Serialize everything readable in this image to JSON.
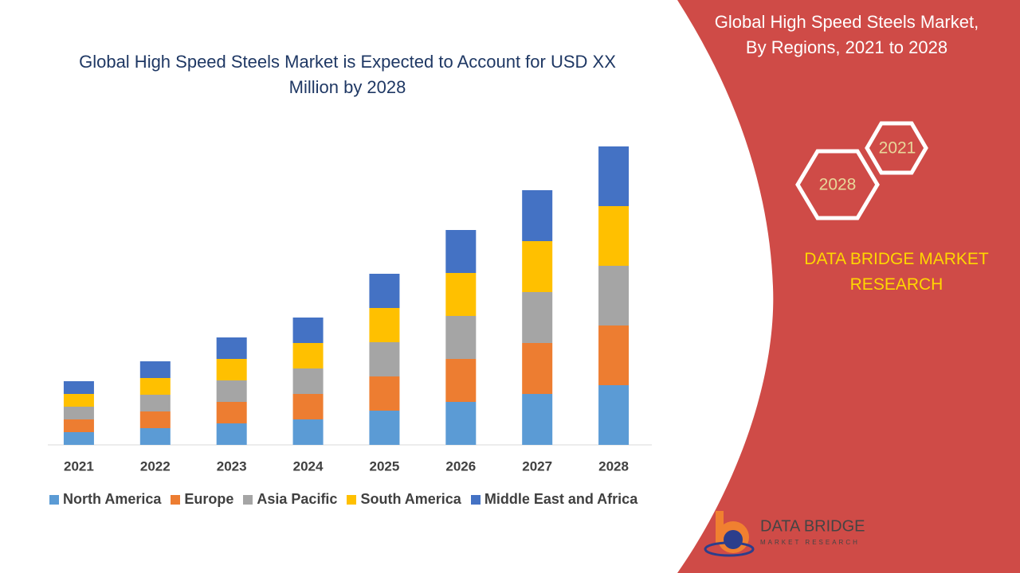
{
  "chart_data": {
    "type": "stacked-bar",
    "title": "Global High Speed Steels Market is Expected to Account for USD XX Million by 2028",
    "categories": [
      "2021",
      "2022",
      "2023",
      "2024",
      "2025",
      "2026",
      "2027",
      "2028"
    ],
    "series": [
      {
        "name": "North America",
        "color": "#5b9bd5",
        "values": [
          16,
          21,
          27,
          32,
          43,
          54,
          64,
          75
        ]
      },
      {
        "name": "Europe",
        "color": "#ed7d31",
        "values": [
          16,
          21,
          27,
          32,
          43,
          54,
          64,
          75
        ]
      },
      {
        "name": "Asia Pacific",
        "color": "#a5a5a5",
        "values": [
          16,
          21,
          27,
          32,
          43,
          54,
          64,
          75
        ]
      },
      {
        "name": "South America",
        "color": "#ffc000",
        "values": [
          16,
          21,
          27,
          32,
          43,
          54,
          64,
          75
        ]
      },
      {
        "name": "Middle East and Africa",
        "color": "#4472c4",
        "values": [
          16,
          21,
          27,
          32,
          43,
          54,
          64,
          75
        ]
      }
    ],
    "ylim": [
      0,
      400
    ]
  },
  "panel": {
    "title": "Global High Speed Steels Market, By Regions, 2021 to 2028",
    "hexagons": [
      "2021",
      "2028"
    ],
    "brand": "DATA BRIDGE MARKET RESEARCH",
    "logo": "DATA BRIDGE",
    "logo_sub": "MARKET RESEARCH"
  }
}
